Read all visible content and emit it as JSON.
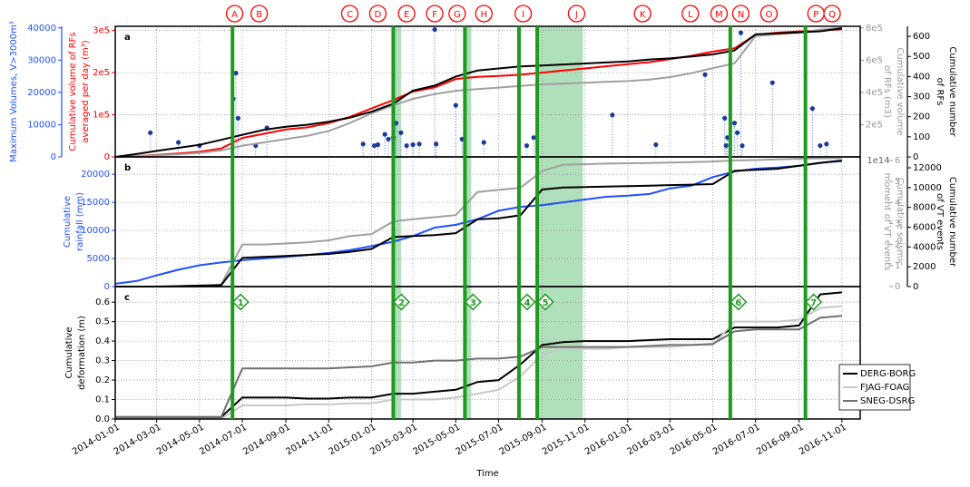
{
  "chart_data": [
    {
      "type": "line",
      "label": "a",
      "grid": true,
      "x": [
        "2014-01-01",
        "2014-02-01",
        "2014-03-01",
        "2014-04-01",
        "2014-05-01",
        "2014-06-01",
        "2014-07-01",
        "2014-08-01",
        "2014-09-01",
        "2014-10-01",
        "2014-11-01",
        "2014-12-01",
        "2015-01-01",
        "2015-02-01",
        "2015-03-01",
        "2015-04-01",
        "2015-05-01",
        "2015-06-01",
        "2015-07-01",
        "2015-08-01",
        "2015-09-01",
        "2015-10-01",
        "2015-11-01",
        "2015-12-01",
        "2016-01-01",
        "2016-02-01",
        "2016-03-01",
        "2016-04-01",
        "2016-05-01",
        "2016-06-01",
        "2016-07-01",
        "2016-08-01",
        "2016-09-01",
        "2016-10-01",
        "2016-11-01"
      ],
      "axes": [
        {
          "label": [
            "Maximum Volumes, V>3000m³"
          ],
          "lim": [
            0,
            40500
          ],
          "ticks": [
            0,
            10000,
            20000,
            30000,
            40000
          ],
          "color": "#1f4fff"
        },
        {
          "label": [
            "Cumulative volume of RFs",
            "averaged per day (m³)"
          ],
          "lim": [
            0,
            310000
          ],
          "ticks": [
            0,
            {
              "value": 100000,
              "label": "1e5"
            },
            {
              "value": 200000,
              "label": "2e5"
            },
            {
              "value": 300000,
              "label": "3e5"
            }
          ],
          "color": "#ff0000"
        },
        {
          "label": [
            "Cumulative volume",
            "of RFs (m3)"
          ],
          "lim": [
            0,
            810000
          ],
          "ticks": [
            {
              "value": 200000,
              "label": "2e5"
            },
            {
              "value": 400000,
              "label": "4e5"
            },
            {
              "value": 600000,
              "label": "6e5"
            },
            {
              "value": 800000,
              "label": "8e5"
            }
          ],
          "color": "#999999"
        },
        {
          "label": [
            "Cumulative number",
            "of RFs"
          ],
          "lim": [
            0,
            650
          ],
          "ticks": [
            0,
            100,
            200,
            300,
            400,
            500,
            600
          ],
          "color": "#000000"
        }
      ],
      "series": [
        {
          "color": "#ff0000",
          "axis": 1,
          "values": [
            0,
            2000,
            5000,
            8000,
            12000,
            20000,
            45000,
            55000,
            65000,
            70000,
            80000,
            95000,
            115000,
            135000,
            155000,
            165000,
            185000,
            190000,
            192000,
            195000,
            200000,
            205000,
            210000,
            215000,
            220000,
            225000,
            232000,
            240000,
            250000,
            258000,
            290000,
            295000,
            298000,
            300000,
            303000
          ]
        },
        {
          "color": "#a0a0a0",
          "axis": 2,
          "values": [
            0,
            5000,
            10000,
            15000,
            25000,
            40000,
            70000,
            90000,
            110000,
            130000,
            160000,
            210000,
            270000,
            320000,
            360000,
            390000,
            410000,
            420000,
            430000,
            440000,
            450000,
            455000,
            460000,
            465000,
            470000,
            480000,
            495000,
            520000,
            550000,
            580000,
            750000,
            760000,
            770000,
            790000,
            800000
          ]
        },
        {
          "color": "#000000",
          "axis": 3,
          "values": [
            0,
            15,
            30,
            45,
            60,
            85,
            110,
            135,
            150,
            160,
            175,
            195,
            225,
            265,
            330,
            355,
            400,
            430,
            440,
            450,
            455,
            460,
            465,
            470,
            475,
            485,
            490,
            500,
            510,
            530,
            610,
            615,
            620,
            625,
            640
          ]
        }
      ],
      "points": {
        "color": "#1c3a9c",
        "axis": 0,
        "x": [
          "2014-02-20",
          "2014-04-01",
          "2014-05-01",
          "2014-06-18",
          "2014-06-22",
          "2014-06-25",
          "2014-07-20",
          "2014-08-05",
          "2014-12-20",
          "2015-01-05",
          "2015-01-10",
          "2015-01-20",
          "2015-01-25",
          "2015-02-01",
          "2015-02-05",
          "2015-02-12",
          "2015-02-20",
          "2015-03-01",
          "2015-03-10",
          "2015-04-01",
          "2015-04-03",
          "2015-05-01",
          "2015-05-10",
          "2015-06-10",
          "2015-08-10",
          "2015-08-20",
          "2015-12-10",
          "2016-02-10",
          "2016-04-20",
          "2016-05-18",
          "2016-05-20",
          "2016-05-22",
          "2016-06-01",
          "2016-06-05",
          "2016-06-10",
          "2016-06-12",
          "2016-07-25",
          "2016-09-20",
          "2016-10-01",
          "2016-10-10"
        ],
        "values": [
          7500,
          4500,
          3500,
          18000,
          26000,
          12000,
          3500,
          9000,
          4000,
          3500,
          3800,
          7000,
          5500,
          6000,
          10500,
          7500,
          3500,
          3800,
          4000,
          39500,
          4000,
          16000,
          5500,
          4500,
          3500,
          6000,
          13000,
          3800,
          25500,
          12000,
          3500,
          6000,
          10500,
          7500,
          38500,
          3500,
          23000,
          15000,
          3500,
          4000
        ]
      },
      "markers": {
        "color": "#ff0000",
        "labels": [
          "A",
          "B",
          "C",
          "D",
          "E",
          "F",
          "G",
          "H",
          "I",
          "J",
          "K",
          "L",
          "M",
          "N",
          "O",
          "P",
          "Q"
        ],
        "x": [
          "2014-06-20",
          "2014-07-25",
          "2014-12-01",
          "2015-01-10",
          "2015-02-20",
          "2015-04-01",
          "2015-05-03",
          "2015-06-10",
          "2015-08-05",
          "2015-10-20",
          "2016-01-22",
          "2016-03-30",
          "2016-05-10",
          "2016-06-10",
          "2016-07-20",
          "2016-09-25",
          "2016-10-18"
        ]
      }
    },
    {
      "type": "line",
      "label": "b",
      "grid": true,
      "x": [
        "2014-01-01",
        "2014-02-01",
        "2014-03-01",
        "2014-04-01",
        "2014-05-01",
        "2014-06-01",
        "2014-07-01",
        "2014-08-01",
        "2014-09-01",
        "2014-10-01",
        "2014-11-01",
        "2014-12-01",
        "2015-01-01",
        "2015-02-01",
        "2015-03-01",
        "2015-04-01",
        "2015-05-01",
        "2015-06-01",
        "2015-07-01",
        "2015-08-01",
        "2015-09-01",
        "2015-10-01",
        "2015-11-01",
        "2015-12-01",
        "2016-01-01",
        "2016-02-01",
        "2016-03-01",
        "2016-04-01",
        "2016-05-01",
        "2016-06-01",
        "2016-07-01",
        "2016-08-01",
        "2016-09-01",
        "2016-10-01",
        "2016-11-01"
      ],
      "axes": [
        {
          "label": [
            "Cumulative",
            "rainfall (mm)"
          ],
          "lim": [
            0,
            23100
          ],
          "ticks": [
            0,
            5000,
            10000,
            15000,
            20000
          ],
          "color": "#1f4fff"
        },
        {
          "label": [
            "Cumulative seismic",
            "moment of VT events"
          ],
          "lim": [
            0,
            6.17
          ],
          "ticks": [
            0,
            1,
            2,
            3,
            4,
            5,
            6
          ],
          "offset_label": "1e14",
          "color": "#999999"
        },
        {
          "label": [
            "Cumulative number",
            "of VT events"
          ],
          "lim": [
            0,
            13100
          ],
          "ticks": [
            0,
            2000,
            4000,
            6000,
            8000,
            10000,
            12000
          ],
          "color": "#000000"
        }
      ],
      "series": [
        {
          "color": "#1f4fff",
          "axis": 0,
          "values": [
            500,
            1000,
            2000,
            3000,
            3800,
            4300,
            4700,
            5000,
            5300,
            5600,
            6000,
            6500,
            7200,
            8000,
            9000,
            10500,
            11000,
            12000,
            13500,
            14200,
            14500,
            15000,
            15500,
            16000,
            16200,
            16500,
            17500,
            18000,
            19500,
            20500,
            21000,
            21200,
            21500,
            22000,
            22500
          ]
        },
        {
          "color": "#a0a0a0",
          "axis": 1,
          "values": [
            0,
            0,
            0,
            0,
            0,
            0.1,
            2.0,
            2.0,
            2.05,
            2.1,
            2.2,
            2.4,
            2.5,
            3.1,
            3.2,
            3.3,
            3.4,
            4.5,
            4.6,
            4.7,
            5.5,
            5.8,
            5.82,
            5.85,
            5.87,
            5.88,
            5.9,
            5.92,
            5.95,
            6.0,
            6.02,
            6.05,
            6.08,
            6.1,
            6.12
          ]
        },
        {
          "color": "#000000",
          "axis": 2,
          "values": [
            0,
            0,
            0,
            50,
            100,
            150,
            2900,
            3000,
            3100,
            3200,
            3300,
            3500,
            3800,
            5000,
            5100,
            5200,
            5400,
            6800,
            6900,
            7200,
            9800,
            10000,
            10050,
            10100,
            10150,
            10200,
            10250,
            10300,
            10350,
            11700,
            11800,
            11900,
            12200,
            12500,
            12700
          ]
        }
      ]
    },
    {
      "type": "line",
      "label": "c",
      "grid": true,
      "legend": "lower right",
      "xlabel": "Time",
      "xlim": [
        "2014-01-01",
        "2016-11-27"
      ],
      "xticks": [
        "2014-01-01",
        "2014-03-01",
        "2014-05-01",
        "2014-07-01",
        "2014-09-01",
        "2014-11-01",
        "2015-01-01",
        "2015-03-01",
        "2015-05-01",
        "2015-07-01",
        "2015-09-01",
        "2015-11-01",
        "2016-01-01",
        "2016-03-01",
        "2016-05-01",
        "2016-07-01",
        "2016-09-01",
        "2016-11-01"
      ],
      "x": [
        "2014-01-01",
        "2014-02-01",
        "2014-03-01",
        "2014-04-01",
        "2014-05-01",
        "2014-06-01",
        "2014-07-01",
        "2014-08-01",
        "2014-09-01",
        "2014-10-01",
        "2014-11-01",
        "2014-12-01",
        "2015-01-01",
        "2015-02-01",
        "2015-03-01",
        "2015-04-01",
        "2015-05-01",
        "2015-06-01",
        "2015-07-01",
        "2015-08-01",
        "2015-09-01",
        "2015-10-01",
        "2015-11-01",
        "2015-12-01",
        "2016-01-01",
        "2016-02-01",
        "2016-03-01",
        "2016-04-01",
        "2016-05-01",
        "2016-06-01",
        "2016-07-01",
        "2016-08-01",
        "2016-09-01",
        "2016-10-01",
        "2016-11-01"
      ],
      "axes": [
        {
          "label": [
            "Cumulative",
            "deformation (m)"
          ],
          "lim": [
            0,
            0.68
          ],
          "ticks": [
            {
              "value": 0,
              "label": "0.0"
            },
            0.1,
            0.2,
            0.3,
            0.4,
            0.5,
            0.6
          ],
          "color": "#000000"
        }
      ],
      "series": [
        {
          "name": "DERG-BORG",
          "color": "#000000",
          "axis": 0,
          "values": [
            0.01,
            0.01,
            0.01,
            0.01,
            0.01,
            0.01,
            0.11,
            0.11,
            0.11,
            0.105,
            0.105,
            0.11,
            0.11,
            0.13,
            0.13,
            0.14,
            0.15,
            0.19,
            0.2,
            0.28,
            0.38,
            0.395,
            0.4,
            0.4,
            0.4,
            0.405,
            0.41,
            0.41,
            0.41,
            0.47,
            0.47,
            0.47,
            0.48,
            0.64,
            0.65
          ]
        },
        {
          "name": "FJAG-FOAG",
          "color": "#c8c8c8",
          "axis": 0,
          "values": [
            0,
            0,
            0,
            0,
            0,
            0,
            0.07,
            0.07,
            0.07,
            0.075,
            0.075,
            0.08,
            0.08,
            0.1,
            0.1,
            0.1,
            0.11,
            0.13,
            0.15,
            0.22,
            0.33,
            0.36,
            0.36,
            0.36,
            0.37,
            0.37,
            0.37,
            0.38,
            0.38,
            0.5,
            0.5,
            0.5,
            0.51,
            0.57,
            0.58
          ]
        },
        {
          "name": "SNEG-DSRG",
          "color": "#707070",
          "axis": 0,
          "values": [
            0.01,
            0.01,
            0.01,
            0.01,
            0.01,
            0.01,
            0.26,
            0.26,
            0.26,
            0.26,
            0.26,
            0.265,
            0.27,
            0.29,
            0.29,
            0.3,
            0.3,
            0.31,
            0.31,
            0.32,
            0.37,
            0.37,
            0.37,
            0.37,
            0.37,
            0.375,
            0.38,
            0.38,
            0.385,
            0.45,
            0.46,
            0.46,
            0.46,
            0.52,
            0.53
          ]
        }
      ],
      "events": {
        "color": "#1e9a1e",
        "labels": [
          "1",
          "2",
          "3",
          "4",
          "5",
          "6",
          "7"
        ],
        "x": [
          "2014-06-17",
          "2015-02-01",
          "2015-05-14",
          "2015-07-30",
          "2015-08-25",
          "2016-05-26",
          "2016-09-10"
        ]
      },
      "shaded": [
        [
          "2015-02-01",
          "2015-02-12"
        ],
        [
          "2015-05-14",
          "2015-05-23"
        ],
        [
          "2015-08-25",
          "2015-10-29"
        ]
      ],
      "shade_color": "#8fd19e"
    }
  ]
}
